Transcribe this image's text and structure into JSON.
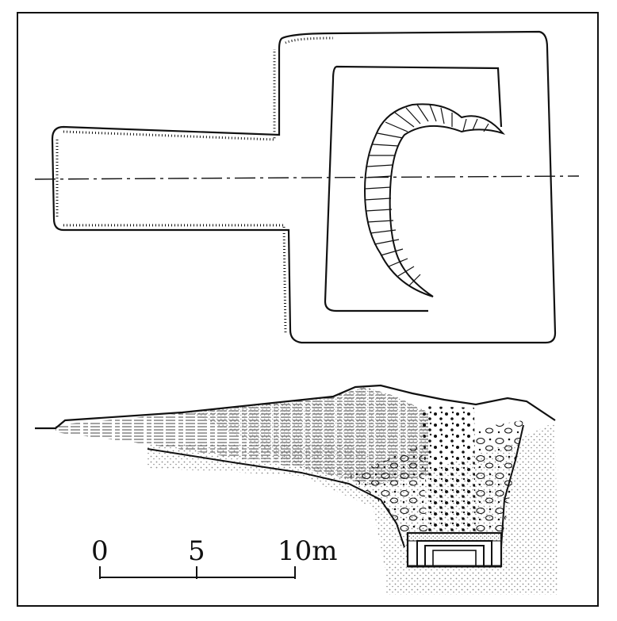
{
  "colors": {
    "ink": "#111111",
    "paper": "#ffffff",
    "stipple": "#9a9a9a"
  },
  "scale_bar": {
    "ticks": [
      "0",
      "5",
      "10m"
    ]
  }
}
